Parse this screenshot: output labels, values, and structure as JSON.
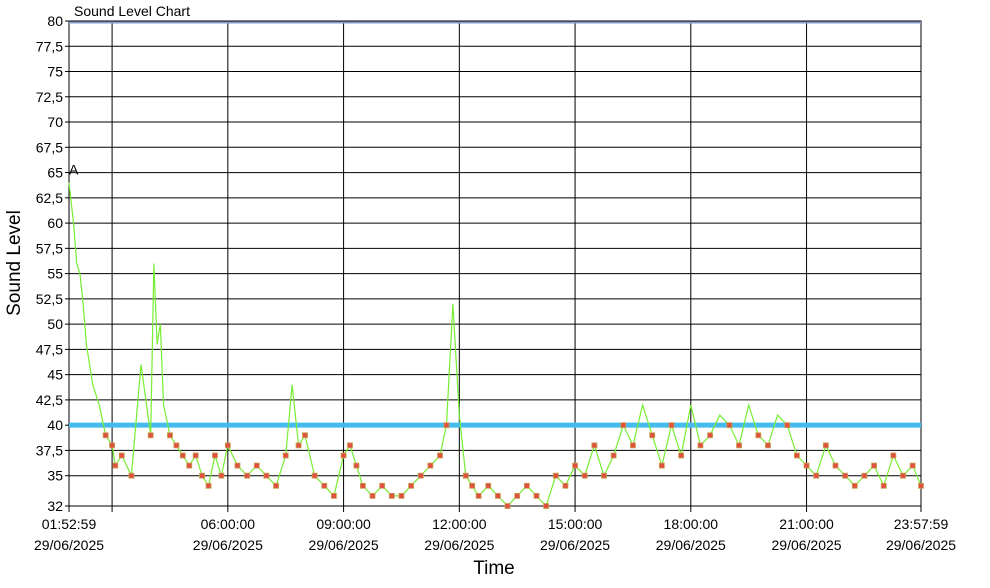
{
  "chart_data": {
    "type": "line",
    "title": "Sound Level Chart",
    "xlabel": "Time",
    "ylabel": "Sound Level",
    "ylim": [
      32,
      80
    ],
    "y_ticks": [
      "80",
      "77,5",
      "75",
      "72,5",
      "70",
      "67,5",
      "65",
      "62,5",
      "60",
      "57,5",
      "55",
      "52,5",
      "50",
      "47,5",
      "45",
      "42,5",
      "40",
      "37,5",
      "35",
      "32"
    ],
    "y_tick_values": [
      80,
      77.5,
      75,
      72.5,
      70,
      67.5,
      65,
      62.5,
      60,
      57.5,
      55,
      52.5,
      50,
      47.5,
      45,
      42.5,
      40,
      37.5,
      35,
      32
    ],
    "x_range": [
      "01:52:59",
      "23:57:59"
    ],
    "x_ticks": [
      {
        "time": "01:52:59",
        "date": "29/06/2025"
      },
      {
        "time": "06:00:00",
        "date": "29/06/2025"
      },
      {
        "time": "09:00:00",
        "date": "29/06/2025"
      },
      {
        "time": "12:00:00",
        "date": "29/06/2025"
      },
      {
        "time": "15:00:00",
        "date": "29/06/2025"
      },
      {
        "time": "18:00:00",
        "date": "29/06/2025"
      },
      {
        "time": "21:00:00",
        "date": "29/06/2025"
      },
      {
        "time": "23:57:59",
        "date": "29/06/2025"
      }
    ],
    "threshold": 40,
    "annotation": {
      "text": "A",
      "time": "01:52:59",
      "y": 65
    },
    "grid": true,
    "colors": {
      "line": "#77ee33",
      "marker": "#e05040",
      "marker_border": "#c8a050",
      "threshold": "#44bbee",
      "top_line": "#8899cc"
    },
    "series": [
      {
        "values_time": [
          "01:52:59",
          "02:00:00",
          "02:05:00",
          "02:10:00",
          "02:15:00",
          "02:20:00",
          "02:30:00",
          "02:40:00",
          "02:50:00",
          "03:00:00",
          "03:05:00",
          "03:15:00",
          "03:30:00",
          "03:45:00",
          "04:00:00",
          "04:05:00",
          "04:10:00",
          "04:15:00",
          "04:20:00",
          "04:30:00",
          "04:40:00",
          "04:50:00",
          "05:00:00",
          "05:10:00",
          "05:20:00",
          "05:30:00",
          "05:40:00",
          "05:50:00",
          "06:00:00",
          "06:15:00",
          "06:30:00",
          "06:45:00",
          "07:00:00",
          "07:15:00",
          "07:30:00",
          "07:40:00",
          "07:50:00",
          "08:00:00",
          "08:15:00",
          "08:30:00",
          "08:45:00",
          "09:00:00",
          "09:10:00",
          "09:20:00",
          "09:30:00",
          "09:45:00",
          "10:00:00",
          "10:15:00",
          "10:30:00",
          "10:45:00",
          "11:00:00",
          "11:15:00",
          "11:30:00",
          "11:40:00",
          "11:50:00",
          "12:00:00",
          "12:10:00",
          "12:20:00",
          "12:30:00",
          "12:45:00",
          "13:00:00",
          "13:15:00",
          "13:30:00",
          "13:45:00",
          "14:00:00",
          "14:15:00",
          "14:30:00",
          "14:45:00",
          "15:00:00",
          "15:15:00",
          "15:30:00",
          "15:45:00",
          "16:00:00",
          "16:15:00",
          "16:30:00",
          "16:45:00",
          "17:00:00",
          "17:15:00",
          "17:30:00",
          "17:45:00",
          "18:00:00",
          "18:15:00",
          "18:30:00",
          "18:45:00",
          "19:00:00",
          "19:15:00",
          "19:30:00",
          "19:45:00",
          "20:00:00",
          "20:15:00",
          "20:30:00",
          "20:45:00",
          "21:00:00",
          "21:15:00",
          "21:30:00",
          "21:45:00",
          "22:00:00",
          "22:15:00",
          "22:30:00",
          "22:45:00",
          "23:00:00",
          "23:15:00",
          "23:30:00",
          "23:45:00",
          "23:57:59"
        ],
        "values": [
          64,
          60,
          56,
          55,
          52,
          48,
          44,
          42,
          39,
          38,
          36,
          37,
          35,
          46,
          39,
          56,
          48,
          50,
          42,
          39,
          38,
          37,
          36,
          37,
          35,
          34,
          37,
          35,
          38,
          36,
          35,
          36,
          35,
          34,
          37,
          44,
          38,
          39,
          35,
          34,
          33,
          37,
          38,
          36,
          34,
          33,
          34,
          33,
          33,
          34,
          35,
          36,
          37,
          40,
          52,
          41,
          35,
          34,
          33,
          34,
          33,
          32,
          33,
          34,
          33,
          32,
          35,
          34,
          36,
          35,
          38,
          35,
          37,
          40,
          38,
          42,
          39,
          36,
          40,
          37,
          42,
          38,
          39,
          41,
          40,
          38,
          42,
          39,
          38,
          41,
          40,
          37,
          36,
          35,
          38,
          36,
          35,
          34,
          35,
          36,
          34,
          37,
          35,
          36,
          34
        ]
      }
    ]
  }
}
